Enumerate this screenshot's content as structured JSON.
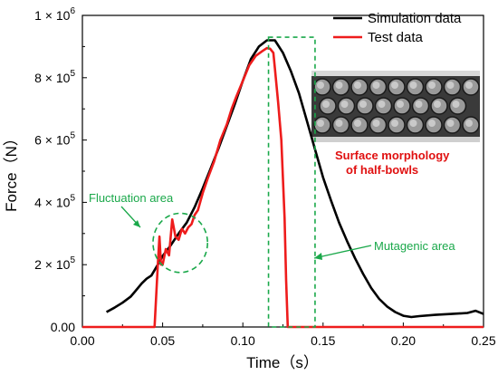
{
  "chart_data": {
    "type": "line",
    "xlabel": "Time（s）",
    "ylabel": "Force（N）",
    "xlim": [
      0.0,
      0.25
    ],
    "ylim": [
      0,
      1000000
    ],
    "x_ticks": [
      "0.00",
      "0.05",
      "0.10",
      "0.15",
      "0.20",
      "0.25"
    ],
    "y_ticks": [
      {
        "value": 0,
        "mant": "0.00",
        "exp": ""
      },
      {
        "value": 200000,
        "mant": "2 × 10",
        "exp": "5"
      },
      {
        "value": 400000,
        "mant": "4 × 10",
        "exp": "5"
      },
      {
        "value": 600000,
        "mant": "6 × 10",
        "exp": "5"
      },
      {
        "value": 800000,
        "mant": "8 × 10",
        "exp": "5"
      },
      {
        "value": 1000000,
        "mant": "1 × 10",
        "exp": "6"
      }
    ],
    "legend_position": "top-right",
    "series": [
      {
        "name": "Simulation data",
        "color": "#000000",
        "points": [
          [
            0.015,
            48000
          ],
          [
            0.02,
            62000
          ],
          [
            0.025,
            78000
          ],
          [
            0.03,
            97000
          ],
          [
            0.033,
            115000
          ],
          [
            0.037,
            140000
          ],
          [
            0.04,
            155000
          ],
          [
            0.043,
            165000
          ],
          [
            0.047,
            200000
          ],
          [
            0.05,
            228000
          ],
          [
            0.055,
            262000
          ],
          [
            0.06,
            300000
          ],
          [
            0.065,
            335000
          ],
          [
            0.07,
            385000
          ],
          [
            0.075,
            445000
          ],
          [
            0.08,
            510000
          ],
          [
            0.085,
            575000
          ],
          [
            0.09,
            645000
          ],
          [
            0.095,
            715000
          ],
          [
            0.1,
            790000
          ],
          [
            0.105,
            860000
          ],
          [
            0.11,
            900000
          ],
          [
            0.115,
            920000
          ],
          [
            0.12,
            920000
          ],
          [
            0.125,
            880000
          ],
          [
            0.13,
            820000
          ],
          [
            0.135,
            750000
          ],
          [
            0.14,
            660000
          ],
          [
            0.145,
            570000
          ],
          [
            0.15,
            480000
          ],
          [
            0.155,
            405000
          ],
          [
            0.16,
            335000
          ],
          [
            0.165,
            275000
          ],
          [
            0.17,
            220000
          ],
          [
            0.175,
            170000
          ],
          [
            0.18,
            125000
          ],
          [
            0.185,
            90000
          ],
          [
            0.19,
            65000
          ],
          [
            0.195,
            48000
          ],
          [
            0.2,
            36000
          ],
          [
            0.205,
            32000
          ],
          [
            0.21,
            35000
          ],
          [
            0.22,
            39000
          ],
          [
            0.23,
            42000
          ],
          [
            0.24,
            45000
          ],
          [
            0.245,
            52000
          ],
          [
            0.25,
            42000
          ]
        ]
      },
      {
        "name": "Test data",
        "color": "#ee1c1c",
        "points": [
          [
            0.0,
            0
          ],
          [
            0.045,
            0
          ],
          [
            0.047,
            200000
          ],
          [
            0.048,
            290000
          ],
          [
            0.049,
            200000
          ],
          [
            0.05,
            200000
          ],
          [
            0.052,
            250000
          ],
          [
            0.054,
            230000
          ],
          [
            0.056,
            345000
          ],
          [
            0.058,
            290000
          ],
          [
            0.06,
            280000
          ],
          [
            0.062,
            315000
          ],
          [
            0.064,
            300000
          ],
          [
            0.066,
            320000
          ],
          [
            0.068,
            330000
          ],
          [
            0.07,
            360000
          ],
          [
            0.072,
            375000
          ],
          [
            0.075,
            430000
          ],
          [
            0.078,
            475000
          ],
          [
            0.082,
            530000
          ],
          [
            0.086,
            600000
          ],
          [
            0.09,
            650000
          ],
          [
            0.093,
            700000
          ],
          [
            0.096,
            740000
          ],
          [
            0.1,
            790000
          ],
          [
            0.104,
            840000
          ],
          [
            0.108,
            870000
          ],
          [
            0.112,
            885000
          ],
          [
            0.115,
            895000
          ],
          [
            0.117,
            893000
          ],
          [
            0.119,
            880000
          ],
          [
            0.12,
            830000
          ],
          [
            0.122,
            720000
          ],
          [
            0.124,
            600000
          ],
          [
            0.126,
            350000
          ],
          [
            0.127,
            150000
          ],
          [
            0.128,
            0
          ],
          [
            0.25,
            0
          ]
        ]
      }
    ],
    "annotations": {
      "fluctuation_label": "Fluctuation area",
      "mutagenic_label": "Mutagenic area",
      "surface_label_line1": "Surface morphology",
      "surface_label_line2": "of  half-bowls",
      "fluctuation_region": {
        "x_center": 0.061,
        "y_center": 270000,
        "x_half": 0.017,
        "y_half": 95000
      },
      "mutagenic_region": {
        "x0": 0.116,
        "x1": 0.145,
        "y0": 0,
        "y1": 930000
      }
    },
    "grid": false
  }
}
